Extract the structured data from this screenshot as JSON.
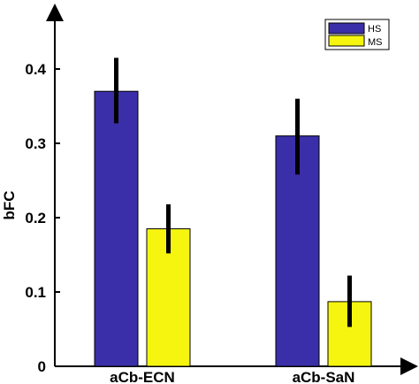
{
  "chart_data": {
    "type": "bar",
    "categories": [
      "aCb-ECN",
      "aCb-SaN"
    ],
    "series": [
      {
        "name": "HS",
        "color": "#3a2fa8",
        "values": [
          0.37,
          0.31
        ],
        "error_low": [
          0.327,
          0.258
        ],
        "error_high": [
          0.415,
          0.36
        ]
      },
      {
        "name": "MS",
        "color": "#f5f50f",
        "values": [
          0.185,
          0.087
        ],
        "error_low": [
          0.152,
          0.053
        ],
        "error_high": [
          0.218,
          0.122
        ]
      }
    ],
    "ylabel": "bFC",
    "xlabel": "",
    "ylim": [
      0,
      0.4
    ],
    "yticks": [
      "0",
      "0.1",
      "0.2",
      "0.3",
      "0.4"
    ],
    "ytick_values": [
      0,
      0.1,
      0.2,
      0.3,
      0.4
    ],
    "grid": false,
    "legend_placement": "top-right"
  }
}
